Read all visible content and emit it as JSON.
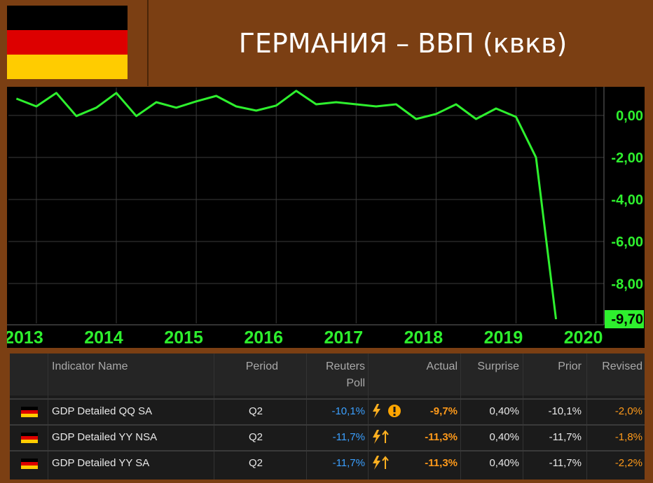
{
  "header": {
    "title": "ГЕРМАНИЯ – ВВП (квкв)"
  },
  "chart_data": {
    "type": "line",
    "x": [
      2012.75,
      2013.0,
      2013.25,
      2013.5,
      2013.75,
      2014.0,
      2014.25,
      2014.5,
      2014.75,
      2015.0,
      2015.25,
      2015.5,
      2015.75,
      2016.0,
      2016.25,
      2016.5,
      2016.75,
      2017.0,
      2017.25,
      2017.5,
      2017.75,
      2018.0,
      2018.25,
      2018.5,
      2018.75,
      2019.0,
      2019.25,
      2019.5
    ],
    "series": [
      {
        "name": "ВВП",
        "color": "#2ef02e",
        "values": [
          0.8,
          0.43,
          1.07,
          -0.03,
          0.37,
          1.07,
          -0.03,
          0.63,
          0.37,
          0.67,
          0.93,
          0.43,
          0.23,
          0.47,
          1.17,
          0.53,
          0.63,
          0.53,
          0.43,
          0.53,
          -0.17,
          0.07,
          0.53,
          -0.17,
          0.33,
          -0.07,
          -2.0,
          -9.7
        ],
        "value_labels": [
          null,
          null,
          null,
          null,
          null,
          null,
          null,
          null,
          null,
          null,
          null,
          null,
          null,
          null,
          null,
          null,
          null,
          null,
          null,
          null,
          null,
          null,
          null,
          null,
          null,
          null,
          null,
          "-9,70"
        ]
      }
    ],
    "xlim": [
      2012.65,
      2020.1
    ],
    "xticks": [
      {
        "value": 2013,
        "label": "2013"
      },
      {
        "value": 2014,
        "label": "2014"
      },
      {
        "value": 2015,
        "label": "2015"
      },
      {
        "value": 2016,
        "label": "2016"
      },
      {
        "value": 2017,
        "label": "2017"
      },
      {
        "value": 2018,
        "label": "2018"
      },
      {
        "value": 2019,
        "label": "2019"
      },
      {
        "value": 2020,
        "label": "2020"
      }
    ],
    "ylim": [
      -9.9,
      1.33
    ],
    "yticks": [
      {
        "value": 0,
        "label": "0,00"
      },
      {
        "value": -2,
        "label": "-2,00"
      },
      {
        "value": -4,
        "label": "-4,00"
      },
      {
        "value": -6,
        "label": "-6,00"
      },
      {
        "value": -8,
        "label": "-8,00"
      }
    ],
    "grid": true
  },
  "table": {
    "columns": [
      "Indicator Name",
      "Period",
      "Reuters Poll",
      "Actual",
      "Surprise",
      "Prior",
      "Revised"
    ],
    "rows": [
      [
        "GDP Detailed QQ SA",
        "Q2",
        "-10,1%",
        "-9,7%",
        "0,40%",
        "-10,1%",
        "-2,0%"
      ],
      [
        "GDP Detailed YY NSA",
        "Q2",
        "-11,7%",
        "-11,3%",
        "0,40%",
        "-11,7%",
        "-1,8%"
      ],
      [
        "GDP Detailed YY SA",
        "Q2",
        "-11,7%",
        "-11,3%",
        "0,40%",
        "-11,7%",
        "-2,2%"
      ]
    ]
  }
}
